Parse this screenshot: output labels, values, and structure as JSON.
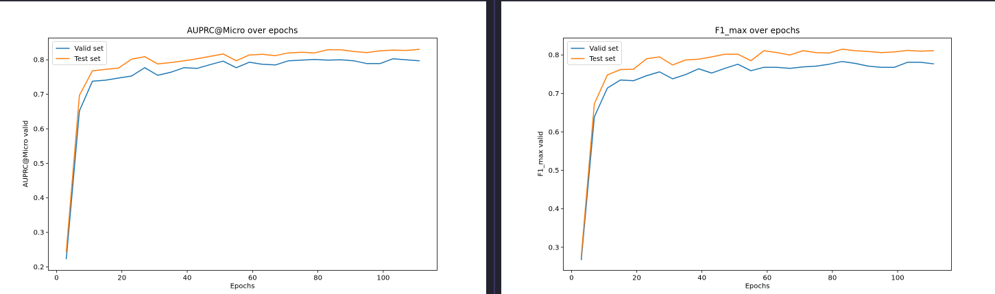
{
  "chart_data": [
    {
      "type": "line",
      "title": "AUPRC@Micro over epochs",
      "xlabel": "Epochs",
      "ylabel": "AUPRC@Micro valid",
      "xlim": [
        -2.5,
        116.5
      ],
      "ylim": [
        0.19,
        0.863
      ],
      "xticks": [
        0,
        20,
        40,
        60,
        80,
        100
      ],
      "yticks": [
        0.2,
        0.3,
        0.4,
        0.5,
        0.6,
        0.7,
        0.8
      ],
      "legend": "top-left",
      "grid": false,
      "x": [
        3,
        7,
        11,
        15,
        19,
        23,
        27,
        31,
        35,
        39,
        43,
        47,
        51,
        55,
        59,
        63,
        67,
        71,
        75,
        79,
        83,
        87,
        91,
        95,
        99,
        103,
        107,
        111
      ],
      "series": [
        {
          "name": "Valid set",
          "color": "#1f77b4",
          "values": [
            0.224,
            0.652,
            0.738,
            0.741,
            0.747,
            0.753,
            0.777,
            0.755,
            0.764,
            0.777,
            0.775,
            0.786,
            0.796,
            0.777,
            0.793,
            0.787,
            0.785,
            0.797,
            0.799,
            0.801,
            0.799,
            0.8,
            0.797,
            0.789,
            0.789,
            0.803,
            0.8,
            0.797
          ]
        },
        {
          "name": "Test set",
          "color": "#ff7f0e",
          "values": [
            0.245,
            0.697,
            0.768,
            0.772,
            0.776,
            0.802,
            0.809,
            0.788,
            0.792,
            0.797,
            0.803,
            0.81,
            0.817,
            0.797,
            0.814,
            0.816,
            0.812,
            0.82,
            0.822,
            0.82,
            0.829,
            0.829,
            0.824,
            0.821,
            0.826,
            0.828,
            0.827,
            0.83
          ]
        }
      ]
    },
    {
      "type": "line",
      "title": "F1_max over epochs",
      "xlabel": "Epochs",
      "ylabel": "F1_max valid",
      "xlim": [
        -2.5,
        116.5
      ],
      "ylim": [
        0.24,
        0.844
      ],
      "xticks": [
        0,
        20,
        40,
        60,
        80,
        100
      ],
      "yticks": [
        0.3,
        0.4,
        0.5,
        0.6,
        0.7,
        0.8
      ],
      "legend": "top-left",
      "grid": false,
      "x": [
        3,
        7,
        11,
        15,
        19,
        23,
        27,
        31,
        35,
        39,
        43,
        47,
        51,
        55,
        59,
        63,
        67,
        71,
        75,
        79,
        83,
        87,
        91,
        95,
        99,
        103,
        107,
        111
      ],
      "series": [
        {
          "name": "Valid set",
          "color": "#1f77b4",
          "values": [
            0.268,
            0.639,
            0.714,
            0.735,
            0.733,
            0.746,
            0.756,
            0.738,
            0.749,
            0.764,
            0.753,
            0.765,
            0.776,
            0.759,
            0.768,
            0.768,
            0.765,
            0.769,
            0.771,
            0.776,
            0.783,
            0.778,
            0.771,
            0.768,
            0.768,
            0.781,
            0.781,
            0.777
          ]
        },
        {
          "name": "Test set",
          "color": "#ff7f0e",
          "values": [
            0.278,
            0.673,
            0.748,
            0.762,
            0.763,
            0.79,
            0.795,
            0.774,
            0.787,
            0.789,
            0.795,
            0.802,
            0.802,
            0.785,
            0.811,
            0.806,
            0.8,
            0.811,
            0.806,
            0.805,
            0.815,
            0.811,
            0.809,
            0.806,
            0.808,
            0.812,
            0.81,
            0.811
          ]
        }
      ]
    }
  ]
}
